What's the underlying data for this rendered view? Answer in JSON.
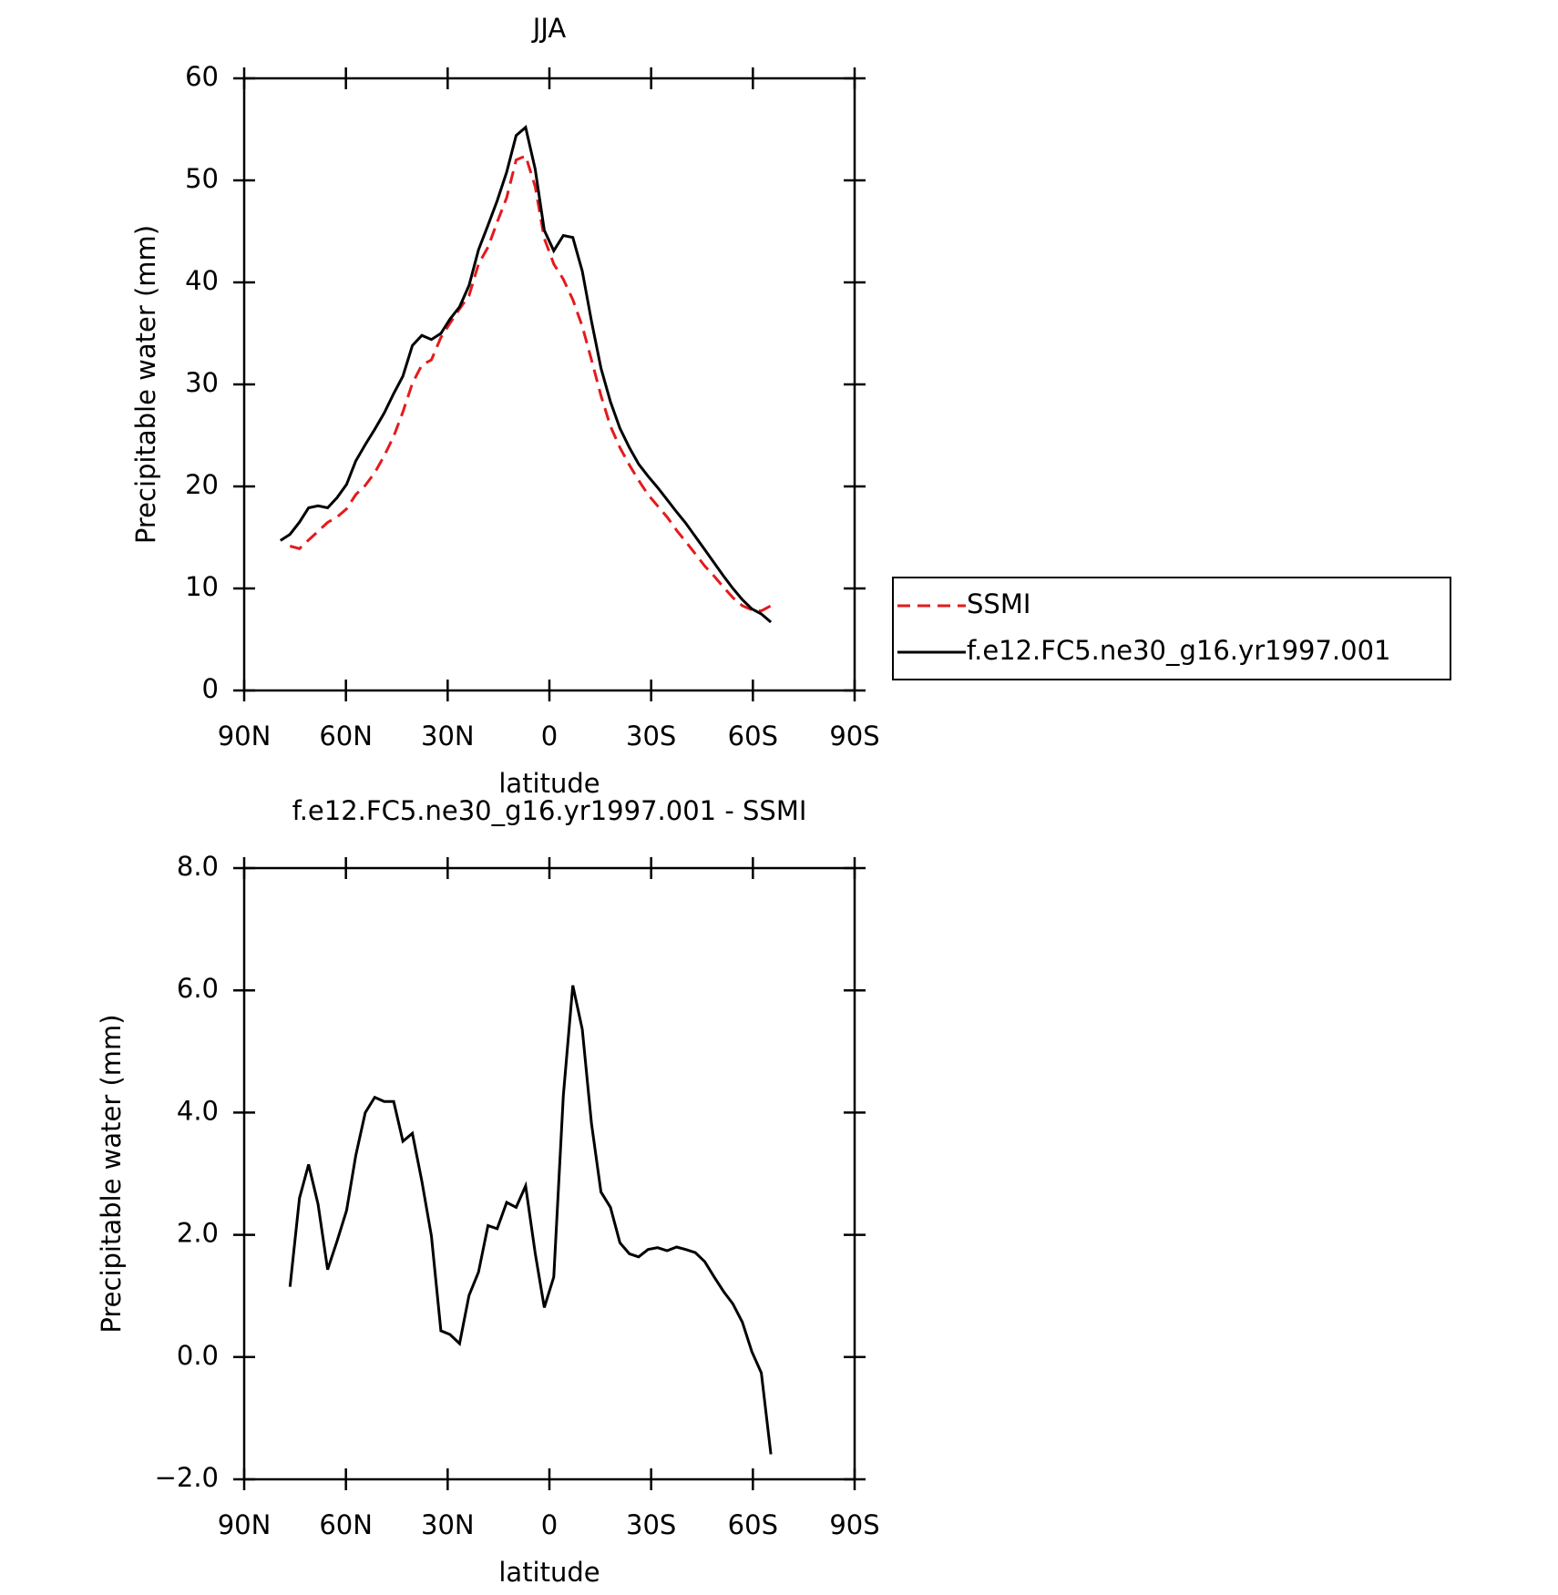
{
  "chart_data": [
    {
      "type": "line",
      "title": "JJA",
      "xlabel": "latitude",
      "ylabel": "Precipitable water (mm)",
      "x": [
        79.3,
        76.5,
        73.7,
        71.0,
        68.2,
        65.4,
        62.6,
        59.8,
        57.1,
        54.3,
        51.5,
        48.7,
        45.9,
        43.2,
        40.4,
        37.6,
        34.8,
        32.0,
        29.3,
        26.5,
        23.7,
        20.9,
        18.1,
        15.4,
        12.6,
        9.8,
        7.0,
        4.2,
        1.5,
        -1.3,
        -4.1,
        -6.9,
        -9.7,
        -12.4,
        -15.2,
        -18.0,
        -20.8,
        -23.6,
        -26.3,
        -29.1,
        -31.9,
        -34.7,
        -37.5,
        -40.2,
        -43.0,
        -45.8,
        -48.6,
        -51.4,
        -54.1,
        -56.9,
        -59.7,
        -62.5,
        -65.3
      ],
      "series": [
        {
          "name": "SSMI",
          "color": "#e41a1c",
          "dash": true,
          "values": [
            null,
            14.15,
            13.9,
            14.75,
            15.6,
            16.47,
            17.0,
            17.8,
            19.2,
            20.1,
            21.35,
            23.0,
            24.9,
            27.3,
            30.1,
            31.9,
            32.4,
            34.6,
            36.0,
            37.4,
            38.7,
            41.8,
            43.45,
            45.9,
            48.3,
            52.0,
            52.4,
            49.4,
            44.3,
            41.8,
            40.3,
            38.3,
            35.7,
            32.4,
            28.9,
            25.9,
            23.8,
            22.1,
            20.6,
            19.2,
            18.1,
            17.0,
            15.7,
            14.6,
            13.4,
            12.2,
            11.2,
            10.1,
            9.1,
            8.3,
            7.9,
            7.8,
            8.3
          ]
        },
        {
          "name": "f.e12.FC5.ne30_g16.yr1997.001",
          "color": "#000000",
          "dash": false,
          "values": [
            14.7,
            15.3,
            16.5,
            17.9,
            18.1,
            17.9,
            18.9,
            20.2,
            22.5,
            24.1,
            25.6,
            27.2,
            29.1,
            30.8,
            33.8,
            34.8,
            34.4,
            35.0,
            36.4,
            37.6,
            39.7,
            43.2,
            45.6,
            48.0,
            50.8,
            54.4,
            55.2,
            51.1,
            45.1,
            43.1,
            44.6,
            44.4,
            41.1,
            36.2,
            31.6,
            28.3,
            25.7,
            23.8,
            22.2,
            21.0,
            19.9,
            18.7,
            17.5,
            16.4,
            15.1,
            13.8,
            12.5,
            11.2,
            10.0,
            8.9,
            8.0,
            7.5,
            6.7
          ]
        }
      ],
      "xlim": [
        90,
        -90
      ],
      "xticks": [
        {
          "value": 90,
          "label": "90N"
        },
        {
          "value": 60,
          "label": "60N"
        },
        {
          "value": 30,
          "label": "30N"
        },
        0,
        {
          "value": -30,
          "label": "30S"
        },
        {
          "value": -60,
          "label": "60S"
        },
        {
          "value": -90,
          "label": "90S"
        }
      ],
      "ylim": [
        0,
        60
      ],
      "yticks": [
        0,
        10,
        20,
        30,
        40,
        50,
        60
      ],
      "legend": "right"
    },
    {
      "type": "line",
      "title": "f.e12.FC5.ne30_g16.yr1997.001 - SSMI",
      "xlabel": "latitude",
      "ylabel": "Precipitable water (mm)",
      "x": [
        79.3,
        76.5,
        73.7,
        71.0,
        68.2,
        65.4,
        62.6,
        59.8,
        57.1,
        54.3,
        51.5,
        48.7,
        45.9,
        43.2,
        40.4,
        37.6,
        34.8,
        32.0,
        29.3,
        26.5,
        23.7,
        20.9,
        18.1,
        15.4,
        12.6,
        9.8,
        7.0,
        4.2,
        1.5,
        -1.3,
        -4.1,
        -6.9,
        -9.7,
        -12.4,
        -15.2,
        -18.0,
        -20.8,
        -23.6,
        -26.3,
        -29.1,
        -31.9,
        -34.7,
        -37.5,
        -40.2,
        -43.0,
        -45.8,
        -48.6,
        -51.4,
        -54.1,
        -56.9,
        -59.7,
        -62.5,
        -65.3
      ],
      "series": [
        {
          "color": "#000000",
          "dash": false,
          "values": [
            null,
            1.15,
            2.6,
            3.15,
            2.5,
            1.43,
            1.9,
            2.4,
            3.3,
            4.0,
            4.25,
            4.18,
            4.18,
            3.53,
            3.66,
            2.88,
            1.98,
            0.43,
            0.37,
            0.22,
            1.01,
            1.39,
            2.15,
            2.1,
            2.53,
            2.45,
            2.8,
            1.7,
            0.81,
            1.31,
            4.28,
            6.08,
            5.36,
            3.82,
            2.7,
            2.45,
            1.87,
            1.69,
            1.64,
            1.76,
            1.79,
            1.74,
            1.8,
            1.76,
            1.71,
            1.56,
            1.31,
            1.07,
            0.87,
            0.57,
            0.09,
            -0.26,
            -1.59
          ]
        }
      ],
      "xlim": [
        90,
        -90
      ],
      "xticks": [
        {
          "value": 90,
          "label": "90N"
        },
        {
          "value": 60,
          "label": "60N"
        },
        {
          "value": 30,
          "label": "30N"
        },
        0,
        {
          "value": -30,
          "label": "30S"
        },
        {
          "value": -60,
          "label": "60S"
        },
        {
          "value": -90,
          "label": "90S"
        }
      ],
      "ylim": [
        -2,
        8
      ],
      "yticks": [
        {
          "value": -2,
          "label": "−2.0"
        },
        {
          "value": 0,
          "label": "0.0"
        },
        {
          "value": 2,
          "label": "2.0"
        },
        {
          "value": 4,
          "label": "4.0"
        },
        {
          "value": 6,
          "label": "6.0"
        },
        {
          "value": 8,
          "label": "8.0"
        }
      ]
    }
  ]
}
